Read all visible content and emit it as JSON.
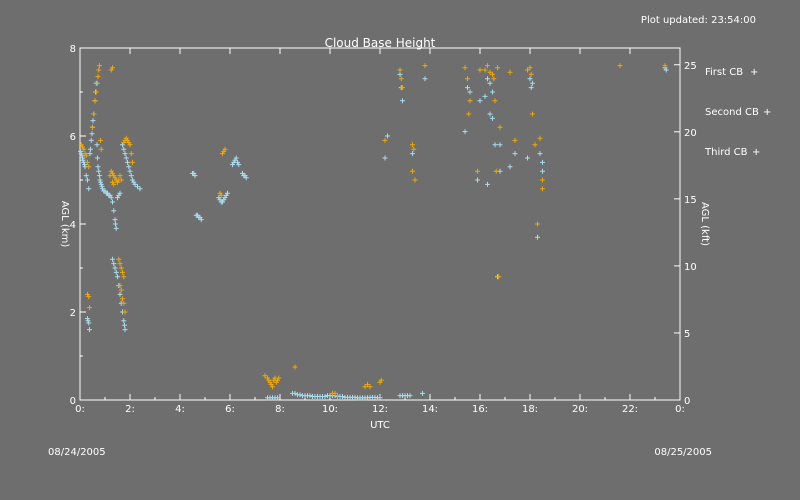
{
  "header": {
    "updated": "Plot updated: 23:54:00"
  },
  "footer": {
    "date_left": "08/24/2005",
    "date_right": "08/25/2005"
  },
  "chart_data": {
    "type": "scatter",
    "title": "Cloud Base Height",
    "xlabel": "UTC",
    "ylabel_left": "AGL (km)",
    "ylabel_right": "AGL (kft)",
    "xlim": [
      0,
      24
    ],
    "ylim": [
      0,
      8
    ],
    "ylim_right": [
      0,
      26.25
    ],
    "x_ticks": [
      0,
      2,
      4,
      6,
      8,
      10,
      12,
      14,
      16,
      18,
      20,
      22,
      24
    ],
    "x_tick_labels": [
      "0:",
      "2:",
      "4:",
      "6:",
      "8:",
      "10:",
      "12:",
      "14:",
      "16:",
      "18:",
      "20:",
      "22:",
      "0:"
    ],
    "y_ticks": [
      0,
      2,
      4,
      6,
      8
    ],
    "y_tick_labels": [
      "0",
      "2",
      "4",
      "6",
      "8"
    ],
    "y_ticks_right": [
      0,
      5,
      10,
      15,
      20,
      25
    ],
    "y_tick_labels_right": [
      "0",
      "5",
      "10",
      "15",
      "20",
      "25"
    ],
    "marker": "+",
    "colors": {
      "first": "#a8dcf0",
      "second": "#f0a800",
      "third": "#ff00ff",
      "axes": "#ffffff",
      "background": "#6e6e6e"
    },
    "series": [
      {
        "name": "First CB",
        "symbol": "+",
        "color": "#a8dcf0",
        "points": [
          [
            0.02,
            5.65
          ],
          [
            0.05,
            5.6
          ],
          [
            0.08,
            5.55
          ],
          [
            0.1,
            5.5
          ],
          [
            0.12,
            5.45
          ],
          [
            0.15,
            5.4
          ],
          [
            0.18,
            5.35
          ],
          [
            0.2,
            5.3
          ],
          [
            0.25,
            5.1
          ],
          [
            0.3,
            5.0
          ],
          [
            0.35,
            4.8
          ],
          [
            0.3,
            1.85
          ],
          [
            0.32,
            1.8
          ],
          [
            0.35,
            1.75
          ],
          [
            0.38,
            1.6
          ],
          [
            0.4,
            5.6
          ],
          [
            0.42,
            5.7
          ],
          [
            0.45,
            5.9
          ],
          [
            0.48,
            6.05
          ],
          [
            0.5,
            6.2
          ],
          [
            0.52,
            6.35
          ],
          [
            0.55,
            6.5
          ],
          [
            0.6,
            6.8
          ],
          [
            0.62,
            7.0
          ],
          [
            0.65,
            7.2
          ],
          [
            0.68,
            5.8
          ],
          [
            0.7,
            5.5
          ],
          [
            0.72,
            5.3
          ],
          [
            0.75,
            5.2
          ],
          [
            0.78,
            5.1
          ],
          [
            0.8,
            5.0
          ],
          [
            0.82,
            4.95
          ],
          [
            0.85,
            4.9
          ],
          [
            0.88,
            4.85
          ],
          [
            0.9,
            4.8
          ],
          [
            0.95,
            4.75
          ],
          [
            1.0,
            4.75
          ],
          [
            1.05,
            4.7
          ],
          [
            1.1,
            4.7
          ],
          [
            1.15,
            4.65
          ],
          [
            1.2,
            4.65
          ],
          [
            1.25,
            4.6
          ],
          [
            1.3,
            4.5
          ],
          [
            1.35,
            4.3
          ],
          [
            1.4,
            4.1
          ],
          [
            1.42,
            4.0
          ],
          [
            1.45,
            3.9
          ],
          [
            1.3,
            3.2
          ],
          [
            1.35,
            3.1
          ],
          [
            1.4,
            3.0
          ],
          [
            1.45,
            2.9
          ],
          [
            1.5,
            2.8
          ],
          [
            1.55,
            2.6
          ],
          [
            1.6,
            2.4
          ],
          [
            1.65,
            2.2
          ],
          [
            1.7,
            2.0
          ],
          [
            1.75,
            1.8
          ],
          [
            1.78,
            1.7
          ],
          [
            1.8,
            1.6
          ],
          [
            1.5,
            4.6
          ],
          [
            1.55,
            4.65
          ],
          [
            1.6,
            4.7
          ],
          [
            1.7,
            5.8
          ],
          [
            1.75,
            5.7
          ],
          [
            1.8,
            5.6
          ],
          [
            1.85,
            5.5
          ],
          [
            1.9,
            5.4
          ],
          [
            1.95,
            5.3
          ],
          [
            2.0,
            5.2
          ],
          [
            2.05,
            5.1
          ],
          [
            2.1,
            5.0
          ],
          [
            2.15,
            4.95
          ],
          [
            2.2,
            4.9
          ],
          [
            2.3,
            4.85
          ],
          [
            2.4,
            4.8
          ],
          [
            4.5,
            5.15
          ],
          [
            4.55,
            5.15
          ],
          [
            4.6,
            5.1
          ],
          [
            4.65,
            4.2
          ],
          [
            4.7,
            4.2
          ],
          [
            4.75,
            4.15
          ],
          [
            4.8,
            4.15
          ],
          [
            4.85,
            4.1
          ],
          [
            5.55,
            4.6
          ],
          [
            5.6,
            4.55
          ],
          [
            5.65,
            4.5
          ],
          [
            5.7,
            4.5
          ],
          [
            5.75,
            4.55
          ],
          [
            5.8,
            4.6
          ],
          [
            5.85,
            4.65
          ],
          [
            5.9,
            4.7
          ],
          [
            6.1,
            5.35
          ],
          [
            6.15,
            5.4
          ],
          [
            6.2,
            5.45
          ],
          [
            6.25,
            5.5
          ],
          [
            6.3,
            5.4
          ],
          [
            6.35,
            5.35
          ],
          [
            6.5,
            5.15
          ],
          [
            6.55,
            5.1
          ],
          [
            6.6,
            5.1
          ],
          [
            6.65,
            5.05
          ],
          [
            7.5,
            0.05
          ],
          [
            7.6,
            0.05
          ],
          [
            7.7,
            0.05
          ],
          [
            7.8,
            0.05
          ],
          [
            7.9,
            0.05
          ],
          [
            8.5,
            0.15
          ],
          [
            8.6,
            0.15
          ],
          [
            8.7,
            0.12
          ],
          [
            8.8,
            0.12
          ],
          [
            8.9,
            0.1
          ],
          [
            9.0,
            0.1
          ],
          [
            9.1,
            0.1
          ],
          [
            9.2,
            0.1
          ],
          [
            9.3,
            0.08
          ],
          [
            9.4,
            0.08
          ],
          [
            9.5,
            0.08
          ],
          [
            9.6,
            0.08
          ],
          [
            9.7,
            0.08
          ],
          [
            9.8,
            0.08
          ],
          [
            9.9,
            0.1
          ],
          [
            10.0,
            0.1
          ],
          [
            10.1,
            0.1
          ],
          [
            10.2,
            0.1
          ],
          [
            10.3,
            0.08
          ],
          [
            10.4,
            0.08
          ],
          [
            10.5,
            0.08
          ],
          [
            10.6,
            0.06
          ],
          [
            10.7,
            0.06
          ],
          [
            10.8,
            0.06
          ],
          [
            10.9,
            0.06
          ],
          [
            11.0,
            0.06
          ],
          [
            11.1,
            0.05
          ],
          [
            11.2,
            0.05
          ],
          [
            11.3,
            0.05
          ],
          [
            11.4,
            0.05
          ],
          [
            11.5,
            0.05
          ],
          [
            11.6,
            0.06
          ],
          [
            11.7,
            0.06
          ],
          [
            11.8,
            0.06
          ],
          [
            11.9,
            0.05
          ],
          [
            12.0,
            0.05
          ],
          [
            12.8,
            0.1
          ],
          [
            12.9,
            0.1
          ],
          [
            13.0,
            0.1
          ],
          [
            13.1,
            0.1
          ],
          [
            13.2,
            0.1
          ],
          [
            13.7,
            0.15
          ],
          [
            12.2,
            5.5
          ],
          [
            12.3,
            6.0
          ],
          [
            12.8,
            7.4
          ],
          [
            12.85,
            7.1
          ],
          [
            12.9,
            6.8
          ],
          [
            13.3,
            5.6
          ],
          [
            13.8,
            7.3
          ],
          [
            15.4,
            6.1
          ],
          [
            15.5,
            7.1
          ],
          [
            15.6,
            7.0
          ],
          [
            15.9,
            5.0
          ],
          [
            16.0,
            6.8
          ],
          [
            16.2,
            6.9
          ],
          [
            16.3,
            7.3
          ],
          [
            16.4,
            7.2
          ],
          [
            16.5,
            7.0
          ],
          [
            16.3,
            4.9
          ],
          [
            16.4,
            6.5
          ],
          [
            16.5,
            6.4
          ],
          [
            16.6,
            5.8
          ],
          [
            16.7,
            2.8
          ],
          [
            16.8,
            5.2
          ],
          [
            16.8,
            5.8
          ],
          [
            17.2,
            5.3
          ],
          [
            17.4,
            5.6
          ],
          [
            17.9,
            5.5
          ],
          [
            18.0,
            7.3
          ],
          [
            18.05,
            7.1
          ],
          [
            18.1,
            7.2
          ],
          [
            18.3,
            3.7
          ],
          [
            18.4,
            5.6
          ],
          [
            18.5,
            5.2
          ],
          [
            18.5,
            5.4
          ],
          [
            23.4,
            7.55
          ],
          [
            23.45,
            7.5
          ]
        ]
      },
      {
        "name": "Second CB",
        "symbol": "+",
        "color": "#f0a800",
        "points": [
          [
            0.05,
            5.8
          ],
          [
            0.1,
            5.75
          ],
          [
            0.15,
            5.7
          ],
          [
            0.2,
            5.6
          ],
          [
            0.25,
            5.55
          ],
          [
            0.3,
            5.4
          ],
          [
            0.35,
            5.3
          ],
          [
            0.3,
            2.4
          ],
          [
            0.35,
            2.35
          ],
          [
            0.38,
            2.1
          ],
          [
            0.5,
            6.2
          ],
          [
            0.55,
            6.5
          ],
          [
            0.6,
            6.8
          ],
          [
            0.65,
            7.0
          ],
          [
            0.7,
            7.2
          ],
          [
            0.72,
            7.35
          ],
          [
            0.75,
            7.5
          ],
          [
            0.78,
            7.6
          ],
          [
            0.82,
            5.9
          ],
          [
            0.85,
            5.7
          ],
          [
            1.2,
            5.1
          ],
          [
            1.25,
            5.2
          ],
          [
            1.3,
            5.15
          ],
          [
            1.35,
            5.1
          ],
          [
            1.4,
            5.05
          ],
          [
            1.45,
            5.0
          ],
          [
            1.5,
            4.95
          ],
          [
            1.55,
            5.0
          ],
          [
            1.6,
            5.1
          ],
          [
            1.65,
            5.0
          ],
          [
            1.3,
            4.95
          ],
          [
            1.35,
            4.9
          ],
          [
            1.25,
            7.5
          ],
          [
            1.3,
            7.55
          ],
          [
            1.55,
            3.2
          ],
          [
            1.6,
            3.1
          ],
          [
            1.65,
            3.0
          ],
          [
            1.7,
            2.9
          ],
          [
            1.75,
            2.8
          ],
          [
            1.6,
            2.6
          ],
          [
            1.65,
            2.5
          ],
          [
            1.7,
            2.3
          ],
          [
            1.75,
            2.2
          ],
          [
            1.8,
            2.0
          ],
          [
            1.75,
            5.85
          ],
          [
            1.8,
            5.9
          ],
          [
            1.85,
            5.95
          ],
          [
            1.9,
            5.9
          ],
          [
            1.95,
            5.85
          ],
          [
            2.0,
            5.8
          ],
          [
            2.05,
            5.6
          ],
          [
            2.1,
            5.4
          ],
          [
            5.6,
            4.7
          ],
          [
            5.65,
            4.65
          ],
          [
            5.7,
            5.6
          ],
          [
            5.75,
            5.65
          ],
          [
            5.8,
            5.7
          ],
          [
            7.4,
            0.55
          ],
          [
            7.5,
            0.5
          ],
          [
            7.55,
            0.45
          ],
          [
            7.6,
            0.4
          ],
          [
            7.65,
            0.35
          ],
          [
            7.7,
            0.3
          ],
          [
            7.75,
            0.45
          ],
          [
            7.8,
            0.5
          ],
          [
            7.85,
            0.4
          ],
          [
            7.9,
            0.45
          ],
          [
            7.95,
            0.5
          ],
          [
            8.6,
            0.75
          ],
          [
            10.1,
            0.15
          ],
          [
            10.2,
            0.15
          ],
          [
            10.3,
            0.1
          ],
          [
            11.4,
            0.3
          ],
          [
            11.5,
            0.35
          ],
          [
            11.6,
            0.3
          ],
          [
            12.0,
            0.4
          ],
          [
            12.05,
            0.45
          ],
          [
            12.2,
            5.9
          ],
          [
            12.8,
            7.5
          ],
          [
            12.85,
            7.3
          ],
          [
            12.9,
            7.1
          ],
          [
            13.3,
            5.8
          ],
          [
            13.35,
            5.7
          ],
          [
            13.3,
            5.2
          ],
          [
            13.4,
            5.0
          ],
          [
            13.8,
            7.6
          ],
          [
            15.4,
            7.55
          ],
          [
            15.5,
            7.3
          ],
          [
            15.55,
            6.5
          ],
          [
            15.6,
            6.8
          ],
          [
            15.9,
            5.2
          ],
          [
            16.0,
            7.5
          ],
          [
            16.2,
            7.5
          ],
          [
            16.3,
            7.6
          ],
          [
            16.4,
            7.45
          ],
          [
            16.5,
            7.4
          ],
          [
            16.55,
            7.3
          ],
          [
            16.6,
            6.8
          ],
          [
            16.7,
            7.55
          ],
          [
            16.65,
            5.2
          ],
          [
            16.75,
            2.8
          ],
          [
            16.8,
            6.2
          ],
          [
            17.2,
            7.45
          ],
          [
            17.4,
            5.9
          ],
          [
            17.9,
            7.5
          ],
          [
            18.0,
            7.55
          ],
          [
            18.05,
            7.4
          ],
          [
            18.1,
            6.5
          ],
          [
            18.2,
            5.8
          ],
          [
            18.3,
            4.0
          ],
          [
            18.4,
            5.95
          ],
          [
            18.5,
            4.8
          ],
          [
            18.5,
            5.0
          ],
          [
            21.6,
            7.6
          ],
          [
            23.4,
            7.6
          ]
        ]
      },
      {
        "name": "Third CB",
        "symbol": "+",
        "color": "#ff00ff",
        "points": []
      }
    ],
    "legend_position": "right"
  }
}
